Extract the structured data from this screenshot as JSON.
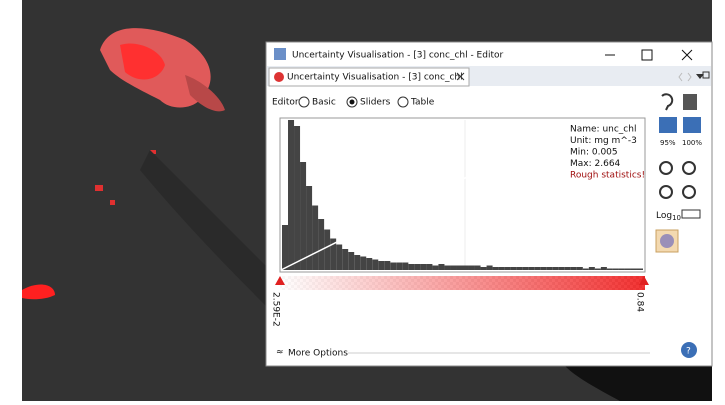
{
  "window": {
    "title": "Uncertainty Visualisation - [3] conc_chl - Editor"
  },
  "tab": {
    "label": "Uncertainty Visualisation - [3] conc_chl"
  },
  "editor": {
    "label": "Editor:",
    "options": [
      "Basic",
      "Sliders",
      "Table"
    ],
    "selected": "Sliders"
  },
  "statistics": [
    "Name: unc_chl",
    "Unit: mg m^-3",
    "Min: 0.005",
    "Max: 2.664"
  ],
  "warning": "Rough statistics!",
  "slider": {
    "min_label": "2.59E-2",
    "max_label": "0.84"
  },
  "histogram": {
    "values": [
      30,
      100,
      96,
      72,
      56,
      43,
      34,
      27,
      21,
      17,
      14,
      12,
      10,
      9,
      8,
      7,
      6,
      6,
      5,
      5,
      5,
      4,
      4,
      4,
      4,
      3,
      4,
      3,
      3,
      3,
      3,
      3,
      3,
      2,
      3,
      2,
      2,
      2,
      2,
      2,
      2,
      2,
      2,
      2,
      2,
      2,
      2,
      2,
      2,
      2,
      1,
      2,
      1,
      2,
      1,
      1,
      1,
      1,
      1,
      1
    ]
  },
  "toolbar": {
    "zoom_95": "95%",
    "zoom_100": "100%",
    "log": "Log",
    "log_sub": "10"
  },
  "footer": {
    "more_options": "More Options"
  }
}
